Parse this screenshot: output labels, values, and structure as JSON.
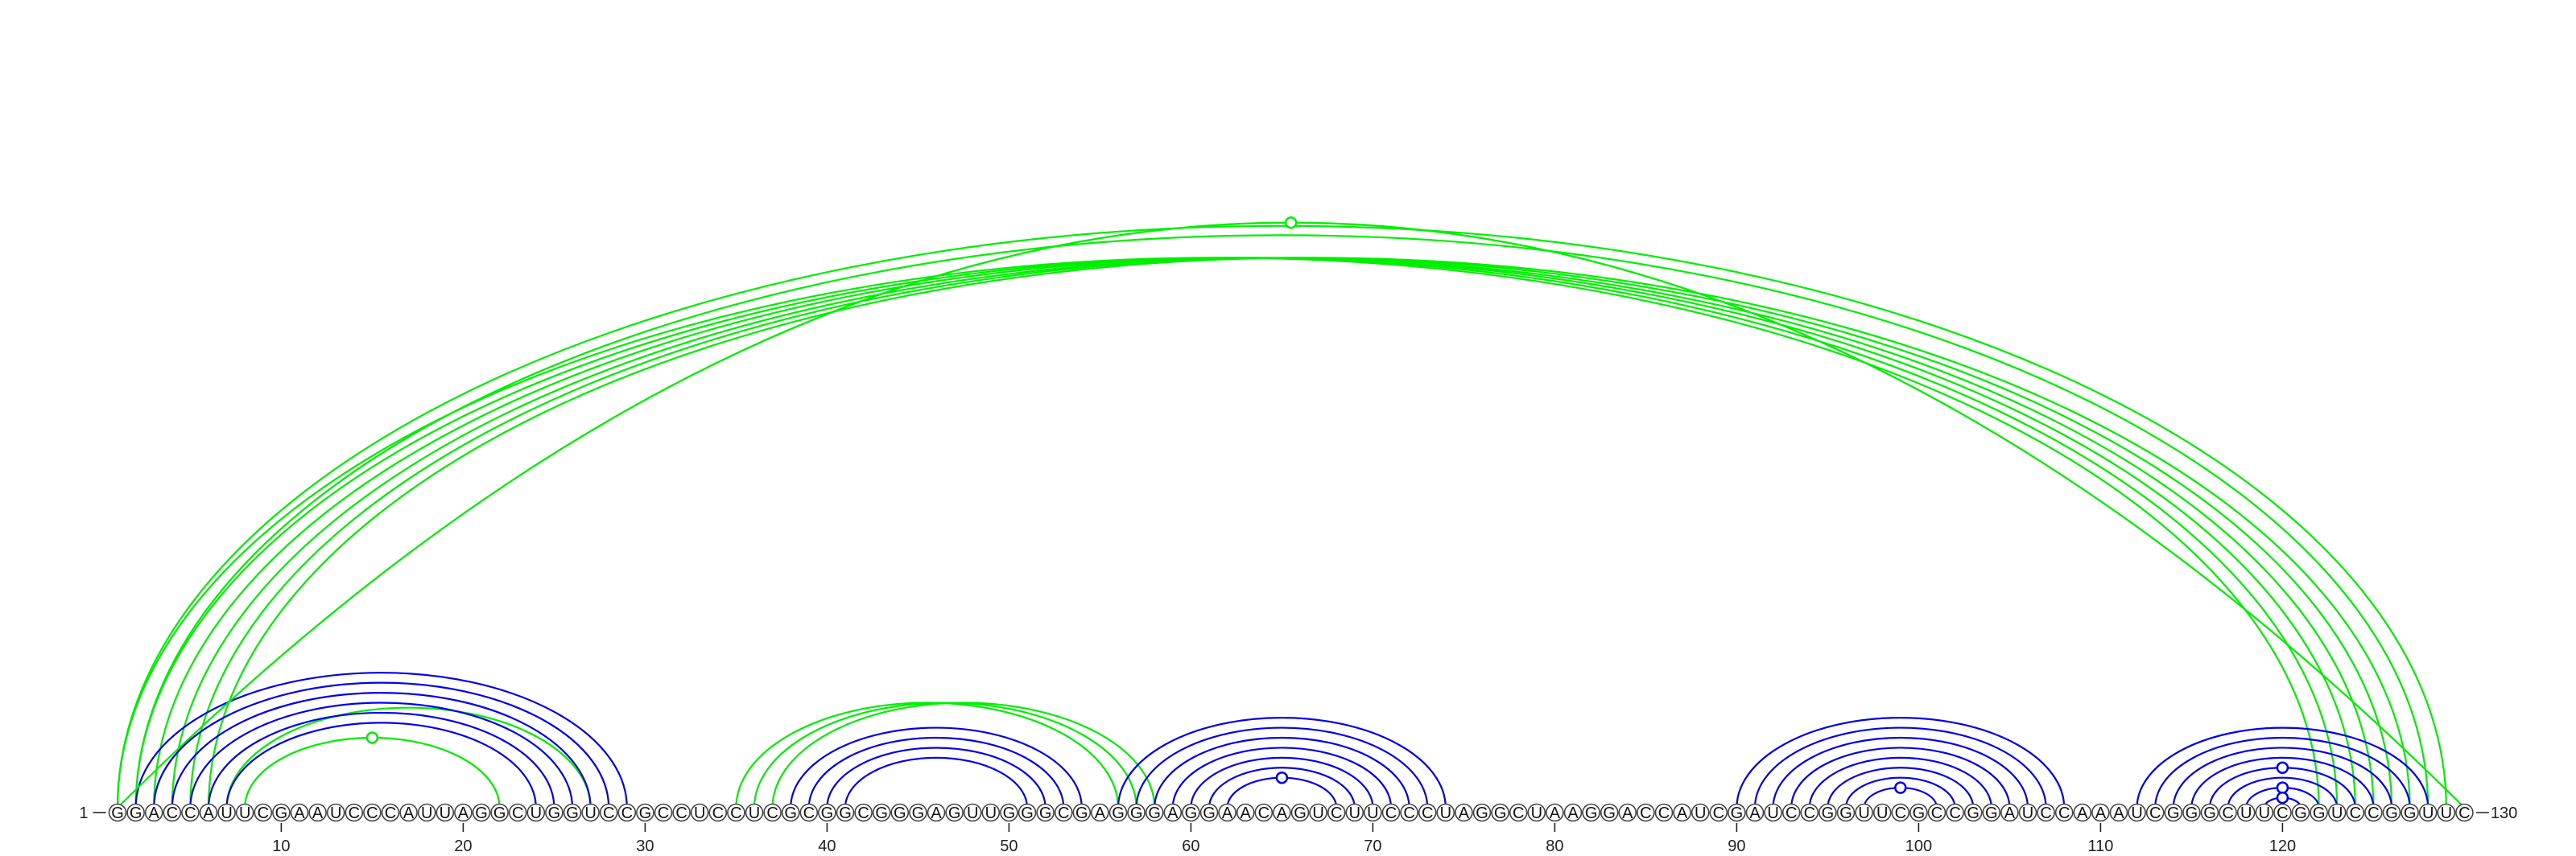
{
  "sequence": "GGACCAUUCGAAUCCCAUUAGGCUGGUCCGCCUCCUCGCGGCGGGAGUUGGGCGAGGGAGGAACAGUCUUCCCUAGGCUAAGGACCAUCGAUCCGGUUCGCCGGAUCCAAAUCGGGCUUCGGUCCGGUUC",
  "start_label": "1",
  "end_label": "130",
  "ticks": [
    "10",
    "20",
    "30",
    "40",
    "50",
    "60",
    "70",
    "80",
    "90",
    "100",
    "110",
    "120"
  ],
  "colors": {
    "green": "#00ee00",
    "blue": "#0000ee"
  },
  "chart_data": {
    "type": "arc",
    "x_range": [
      1,
      130
    ],
    "green_arcs": [
      [
        1,
        122
      ],
      [
        2,
        123
      ],
      [
        3,
        124
      ],
      [
        4,
        125
      ],
      [
        5,
        126
      ],
      [
        6,
        127
      ],
      [
        2,
        128
      ],
      [
        1,
        129
      ],
      [
        8,
        22
      ],
      [
        35,
        56
      ],
      [
        36,
        57
      ],
      [
        37,
        58
      ],
      [
        7,
        27
      ]
    ],
    "blue_arcs": [
      [
        2,
        29
      ],
      [
        3,
        28
      ],
      [
        4,
        27
      ],
      [
        5,
        26
      ],
      [
        6,
        25
      ],
      [
        7,
        24
      ],
      [
        38,
        54
      ],
      [
        39,
        53
      ],
      [
        40,
        52
      ],
      [
        41,
        51
      ],
      [
        56,
        74
      ],
      [
        57,
        73
      ],
      [
        58,
        72
      ],
      [
        59,
        71
      ],
      [
        60,
        70
      ],
      [
        61,
        69
      ],
      [
        62,
        68
      ],
      [
        90,
        108
      ],
      [
        91,
        107
      ],
      [
        92,
        106
      ],
      [
        93,
        105
      ],
      [
        94,
        104
      ],
      [
        95,
        103
      ],
      [
        96,
        102
      ],
      [
        97,
        101
      ],
      [
        112,
        128
      ],
      [
        113,
        127
      ],
      [
        114,
        126
      ],
      [
        115,
        125
      ],
      [
        116,
        124
      ],
      [
        117,
        123
      ]
    ],
    "markers": [
      {
        "x": 65.5,
        "level": "top",
        "color": "green"
      },
      {
        "x": 15,
        "pair": [
          8,
          22
        ],
        "color": "green"
      },
      {
        "x": 65,
        "pair": [
          62,
          68
        ],
        "color": "blue"
      },
      {
        "x": 99,
        "pair": [
          97,
          101
        ],
        "color": "blue"
      },
      {
        "x": 120,
        "pair": [
          116,
          124
        ],
        "color": "blue"
      },
      {
        "x": 120,
        "pair": [
          118,
          122
        ],
        "color": "blue"
      },
      {
        "x": 120,
        "pair": [
          119,
          121
        ],
        "color": "blue"
      }
    ]
  }
}
